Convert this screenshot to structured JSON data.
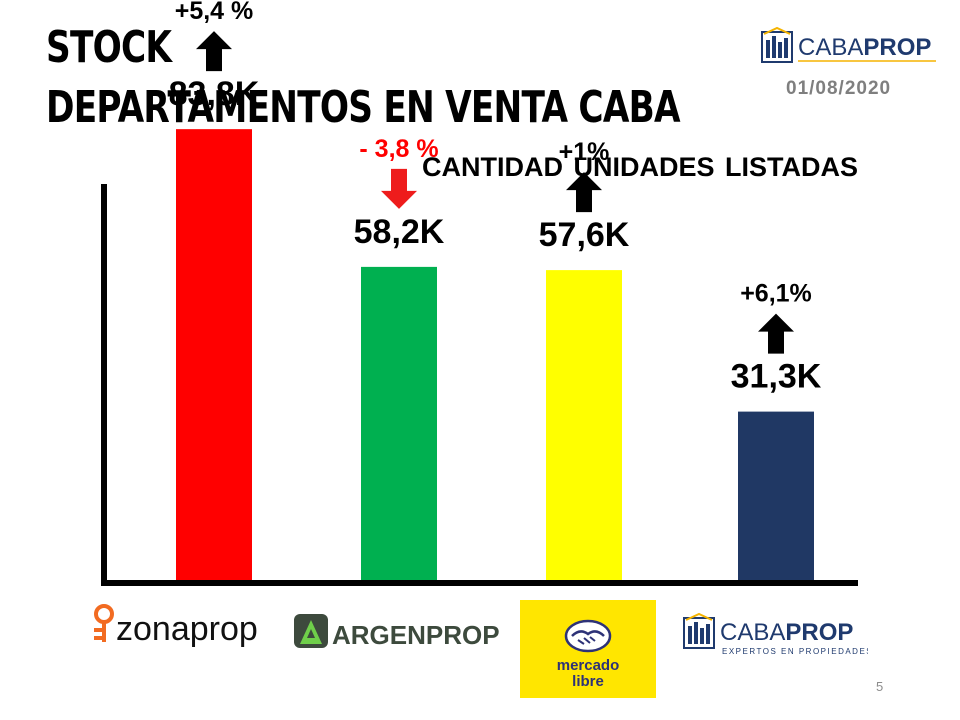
{
  "title_line1": "STOCK",
  "title_line2": "DEPARTAMENTOS EN VENTA CABA",
  "date": "01/08/2020",
  "brand": {
    "caba": "CABA",
    "prop": "PROP",
    "tagline": "EXPERTOS EN PROPIEDADES"
  },
  "page_number": "5",
  "chart_data": {
    "type": "bar",
    "title": "CANTIDAD UNIDADES LISTADAS",
    "categories": [
      "zonaprop",
      "ARGENPROP",
      "mercado libre",
      "CABAPROP"
    ],
    "values": [
      83.8,
      58.2,
      57.6,
      31.3
    ],
    "value_labels": [
      "83,8K",
      "58,2K",
      "57,6K",
      "31,3K"
    ],
    "changes": [
      "+5,4 %",
      "- 3,8 %",
      "+1%",
      "+6,1%"
    ],
    "change_direction": [
      "up",
      "down",
      "up",
      "up"
    ],
    "colors": [
      "#ff0000",
      "#00b050",
      "#ffff00",
      "#203864"
    ],
    "change_colors": [
      "#000000",
      "#ff0000",
      "#000000",
      "#000000"
    ],
    "ylim": [
      0,
      100
    ],
    "xlabel": "",
    "ylabel": "",
    "grid": false
  },
  "logos": {
    "zonaprop": "zonaprop",
    "argenprop": "ARGENPROP",
    "mercadolibre_line1": "mercado",
    "mercadolibre_line2": "libre",
    "cabaprop_caba": "CABA",
    "cabaprop_prop": "PROP",
    "cabaprop_tagline": "EXPERTOS EN PROPIEDADES"
  },
  "colors": {
    "ml_yellow": "#ffe600",
    "argen_green": "#2e7d32",
    "caba_blue": "#1f3a6e",
    "zona_orange": "#f26b21"
  }
}
